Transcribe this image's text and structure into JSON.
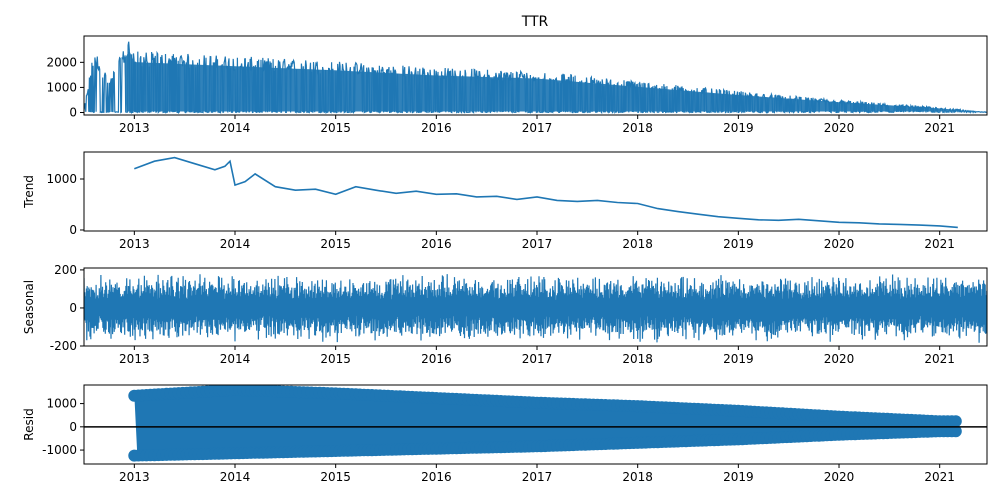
{
  "figure": {
    "title": "TTR",
    "series_color": "#1f77b4"
  },
  "chart_data": [
    {
      "type": "line",
      "name": "observed",
      "title": "TTR",
      "ylabel": "",
      "xlim": [
        2012.5,
        2021.47
      ],
      "ylim": [
        -100,
        3050
      ],
      "yticks": [
        0,
        1000,
        2000
      ],
      "xticks": [
        "2013",
        "2014",
        "2015",
        "2016",
        "2017",
        "2018",
        "2019",
        "2020",
        "2021"
      ],
      "render": "observed",
      "data_summary": {
        "x": [
          2012.5,
          2012.6,
          2012.75,
          2012.95,
          2013.0,
          2014.0,
          2015.0,
          2016.0,
          2017.0,
          2018.0,
          2019.0,
          2020.0,
          2021.0,
          2021.47
        ],
        "y_max": [
          100,
          2600,
          1300,
          3000,
          2450,
          2250,
          2050,
          1800,
          1650,
          1250,
          850,
          500,
          200,
          0
        ],
        "y_min": 0
      }
    },
    {
      "type": "line",
      "name": "trend",
      "ylabel": "Trend",
      "xlim": [
        2012.5,
        2021.47
      ],
      "ylim": [
        -20,
        1530
      ],
      "yticks": [
        0,
        1000
      ],
      "xticks": [
        "2013",
        "2014",
        "2015",
        "2016",
        "2017",
        "2018",
        "2019",
        "2020",
        "2021"
      ],
      "render": "line",
      "x": [
        2013.0,
        2013.2,
        2013.4,
        2013.6,
        2013.8,
        2013.9,
        2013.95,
        2014.0,
        2014.1,
        2014.2,
        2014.4,
        2014.6,
        2014.8,
        2015.0,
        2015.2,
        2015.4,
        2015.6,
        2015.8,
        2016.0,
        2016.2,
        2016.4,
        2016.6,
        2016.8,
        2017.0,
        2017.2,
        2017.4,
        2017.6,
        2017.8,
        2018.0,
        2018.2,
        2018.4,
        2018.6,
        2018.8,
        2019.0,
        2019.2,
        2019.4,
        2019.6,
        2019.8,
        2020.0,
        2020.2,
        2020.4,
        2020.6,
        2020.8,
        2021.0,
        2021.18
      ],
      "y": [
        1200,
        1350,
        1420,
        1300,
        1180,
        1250,
        1350,
        880,
        950,
        1100,
        850,
        780,
        800,
        700,
        850,
        780,
        720,
        760,
        700,
        710,
        650,
        660,
        600,
        650,
        580,
        560,
        580,
        540,
        520,
        420,
        360,
        310,
        260,
        230,
        200,
        190,
        210,
        180,
        150,
        140,
        120,
        110,
        95,
        80,
        50
      ]
    },
    {
      "type": "line",
      "name": "seasonal",
      "ylabel": "Seasonal",
      "xlim": [
        2012.5,
        2021.47
      ],
      "ylim": [
        -200,
        210
      ],
      "yticks": [
        -200,
        0,
        200
      ],
      "xticks": [
        "2013",
        "2014",
        "2015",
        "2016",
        "2017",
        "2018",
        "2019",
        "2020",
        "2021"
      ],
      "render": "seasonal",
      "data_summary": {
        "amplitude_min": -185,
        "amplitude_max": 185
      }
    },
    {
      "type": "scatter",
      "name": "resid",
      "ylabel": "Resid",
      "xlim": [
        2012.5,
        2021.47
      ],
      "ylim": [
        -1600,
        1800
      ],
      "yticks": [
        -1000,
        0,
        1000
      ],
      "xticks": [
        "2013",
        "2014",
        "2015",
        "2016",
        "2017",
        "2018",
        "2019",
        "2020",
        "2021"
      ],
      "render": "resid",
      "data_summary": {
        "x_range": [
          2013.0,
          2021.18
        ],
        "envelope_x": [
          2013.0,
          2014.0,
          2015.0,
          2016.0,
          2017.0,
          2018.0,
          2019.0,
          2020.0,
          2021.0
        ],
        "envelope_top": [
          1400,
          1650,
          1500,
          1300,
          1100,
          950,
          750,
          500,
          300
        ],
        "envelope_bottom": [
          -1300,
          -1200,
          -1100,
          -1000,
          -900,
          -750,
          -600,
          -400,
          -250
        ]
      }
    }
  ]
}
